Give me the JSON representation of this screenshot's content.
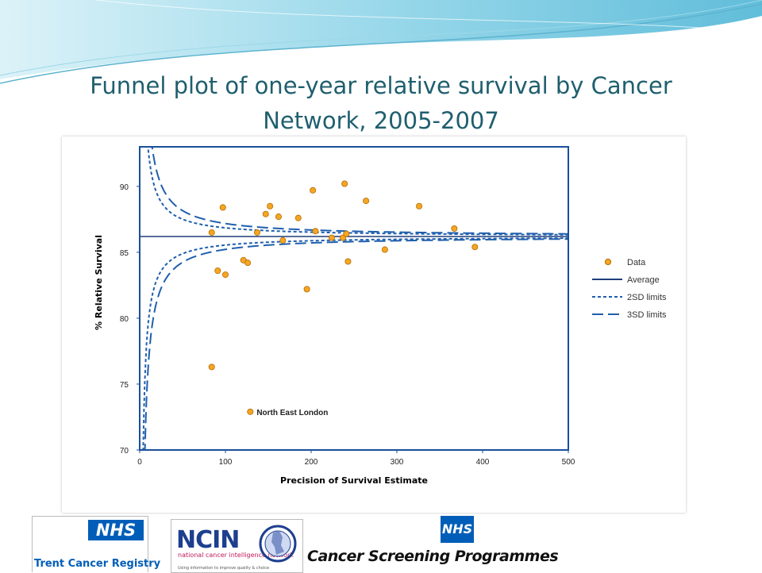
{
  "slide": {
    "title_lines": [
      "Funnel plot of one-year relative survival by Cancer",
      "Network, 2005-2007"
    ]
  },
  "colors": {
    "title": "#1f5f6e",
    "data_fill": "#f5a623",
    "data_stroke": "#b36b00",
    "line": "#1f5fad",
    "frame": "#1a4f9c"
  },
  "chart_data": {
    "type": "scatter",
    "xlabel": "Precision of Survival Estimate",
    "ylabel": "% Relative Survival",
    "xlim": [
      0,
      500
    ],
    "ylim": [
      70,
      93
    ],
    "xticks": [
      0,
      100,
      200,
      300,
      400,
      500
    ],
    "yticks": [
      70,
      75,
      80,
      85,
      90
    ],
    "grid": false,
    "legend_position": "right",
    "legend": [
      "Data",
      "Average",
      "2SD limits",
      "3SD limits"
    ],
    "average": 86.2,
    "data": [
      {
        "x": 84,
        "y": 86.5
      },
      {
        "x": 91,
        "y": 83.6
      },
      {
        "x": 97,
        "y": 88.4
      },
      {
        "x": 100,
        "y": 83.3
      },
      {
        "x": 121,
        "y": 84.4
      },
      {
        "x": 126,
        "y": 84.2
      },
      {
        "x": 137,
        "y": 86.5
      },
      {
        "x": 147,
        "y": 87.9
      },
      {
        "x": 152,
        "y": 88.5
      },
      {
        "x": 162,
        "y": 87.7
      },
      {
        "x": 167,
        "y": 85.9
      },
      {
        "x": 185,
        "y": 87.6
      },
      {
        "x": 195,
        "y": 82.2
      },
      {
        "x": 202,
        "y": 89.7
      },
      {
        "x": 205,
        "y": 86.6
      },
      {
        "x": 224,
        "y": 86.1
      },
      {
        "x": 237,
        "y": 86.1
      },
      {
        "x": 239,
        "y": 90.2
      },
      {
        "x": 241,
        "y": 86.4
      },
      {
        "x": 243,
        "y": 84.3
      },
      {
        "x": 264,
        "y": 88.9
      },
      {
        "x": 286,
        "y": 85.2
      },
      {
        "x": 326,
        "y": 88.5
      },
      {
        "x": 367,
        "y": 86.8
      },
      {
        "x": 391,
        "y": 85.4
      },
      {
        "x": 84,
        "y": 76.3
      },
      {
        "x": 129,
        "y": 72.9
      }
    ],
    "annotations": [
      {
        "label": "North East London",
        "x": 129,
        "y": 72.9
      }
    ],
    "limits": {
      "center": 86.2,
      "sd2_multiplier": 2,
      "sd3_multiplier": 3,
      "scale": 170
    }
  },
  "logos": {
    "trent_nhs": "NHS",
    "trent_text": "Trent Cancer Registry",
    "ncin_word": "NCIN",
    "ncin_sub": "national cancer intelligence network",
    "ncin_tagline": "Using information to improve quality & choice",
    "csp_nhs": "NHS",
    "csp_text": "Cancer Screening Programmes"
  }
}
